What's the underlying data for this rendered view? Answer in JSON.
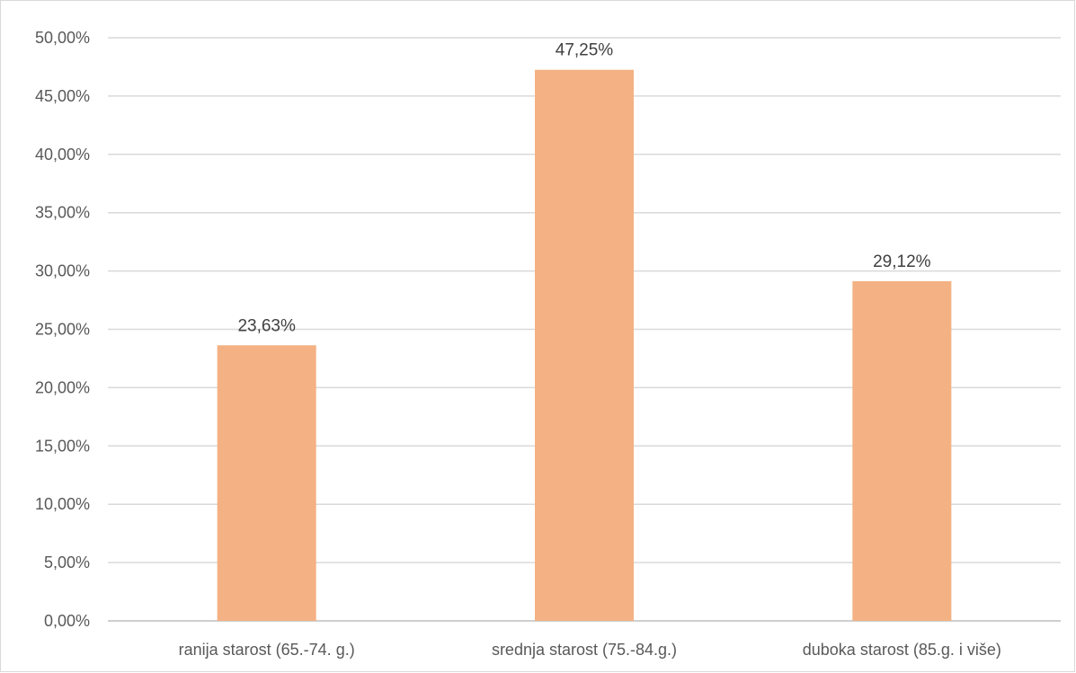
{
  "chart_data": {
    "type": "bar",
    "title": "",
    "xlabel": "",
    "ylabel": "",
    "categories": [
      "ranija starost (65.-74. g.)",
      "srednja starost (75.-84.g.)",
      "duboka starost (85.g. i više)"
    ],
    "values": [
      23.63,
      47.25,
      29.12
    ],
    "data_labels": [
      "23,63%",
      "47,25%",
      "29,12%"
    ],
    "ylim": [
      0,
      50
    ],
    "y_ticks": [
      0,
      5,
      10,
      15,
      20,
      25,
      30,
      35,
      40,
      45,
      50
    ],
    "y_tick_labels": [
      "0,00%",
      "5,00%",
      "10,00%",
      "15,00%",
      "20,00%",
      "25,00%",
      "30,00%",
      "35,00%",
      "40,00%",
      "45,00%",
      "50,00%"
    ],
    "grid": true,
    "legend": "none",
    "colors": {
      "bar": "#F4B183",
      "grid": "#d9d9d9",
      "axis": "#bfbfbf",
      "tick_text": "#595959",
      "label_text": "#404040"
    }
  }
}
